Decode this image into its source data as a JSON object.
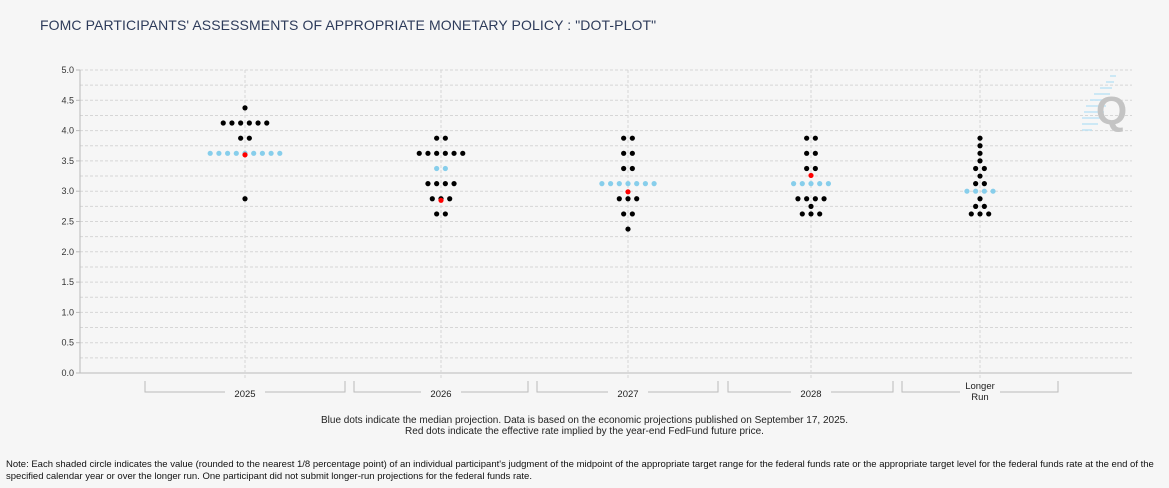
{
  "title": "FOMC PARTICIPANTS' ASSESSMENTS OF APPROPRIATE MONETARY POLICY : \"DOT-PLOT\"",
  "caption_line1": "Blue dots indicate the median projection. Data is based on the economic projections published on September 17, 2025.",
  "caption_line2": "Red dots indicate the effective rate implied by the year-end FedFund future price.",
  "note": "Note: Each shaded circle indicates the value (rounded to the nearest 1/8 percentage point) of an individual participant's judgment of the midpoint of the appropriate target range for the federal funds rate or the appropriate target level for the federal funds rate at the end of the specified calendar year or over the longer run. One participant did not submit longer-run projections for the federal funds rate.",
  "watermark": "Q",
  "colors": {
    "dot": "#000000",
    "median": "#87ceeb",
    "implied": "#ff0000",
    "grid": "#d0d0d0"
  },
  "chart_data": {
    "type": "scatter",
    "title": "FOMC PARTICIPANTS' ASSESSMENTS OF APPROPRIATE MONETARY POLICY : \"DOT-PLOT\"",
    "xlabel": "",
    "ylabel": "",
    "ylim": [
      0,
      5
    ],
    "yticks": [
      "0.0",
      "0.5",
      "1.0",
      "1.5",
      "2.0",
      "2.5",
      "3.0",
      "3.5",
      "4.0",
      "4.5",
      "5.0"
    ],
    "grid": true,
    "categories": [
      {
        "label": "2025",
        "label2": "",
        "dots": [
          [
            4.375,
            1
          ],
          [
            4.125,
            6
          ],
          [
            3.875,
            2
          ],
          [
            2.875,
            1
          ]
        ],
        "median": [
          3.625,
          9
        ],
        "implied": 3.6
      },
      {
        "label": "2026",
        "label2": "",
        "dots": [
          [
            3.875,
            2
          ],
          [
            3.625,
            6
          ],
          [
            3.125,
            4
          ],
          [
            2.875,
            3
          ],
          [
            2.625,
            2
          ]
        ],
        "median": [
          3.375,
          2
        ],
        "implied": 2.85
      },
      {
        "label": "2027",
        "label2": "",
        "dots": [
          [
            3.875,
            2
          ],
          [
            3.625,
            2
          ],
          [
            3.375,
            2
          ],
          [
            2.875,
            3
          ],
          [
            2.625,
            2
          ],
          [
            2.375,
            1
          ]
        ],
        "median": [
          3.125,
          7
        ],
        "implied": 2.99
      },
      {
        "label": "2028",
        "label2": "",
        "dots": [
          [
            3.875,
            2
          ],
          [
            3.625,
            2
          ],
          [
            3.375,
            2
          ],
          [
            2.875,
            4
          ],
          [
            2.75,
            1
          ],
          [
            2.625,
            3
          ]
        ],
        "median": [
          3.125,
          5
        ],
        "implied": 3.26
      },
      {
        "label": "Longer",
        "label2": "Run",
        "dots": [
          [
            3.875,
            1
          ],
          [
            3.75,
            1
          ],
          [
            3.625,
            1
          ],
          [
            3.5,
            1
          ],
          [
            3.375,
            2
          ],
          [
            3.25,
            1
          ],
          [
            3.125,
            2
          ],
          [
            2.875,
            1
          ],
          [
            2.75,
            2
          ],
          [
            2.625,
            3
          ]
        ],
        "median": [
          3.0,
          4
        ],
        "implied": null
      }
    ]
  }
}
